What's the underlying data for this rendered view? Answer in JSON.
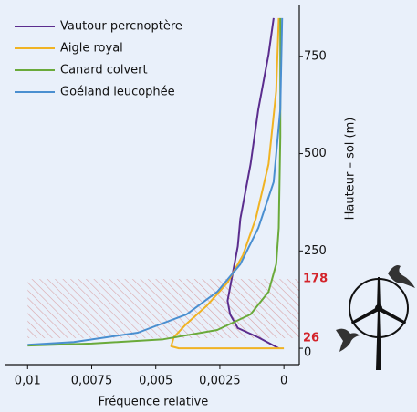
{
  "chart_data": {
    "type": "line",
    "x_label": "Fréquence relative",
    "y_label": "Hauteur – sol (m)",
    "xlim": [
      0.0109,
      -0.0006
    ],
    "ylim": [
      -42,
      883
    ],
    "xticks": [
      {
        "value": 0.01,
        "label": "0,01"
      },
      {
        "value": 0.0075,
        "label": "0,0075"
      },
      {
        "value": 0.005,
        "label": "0,005"
      },
      {
        "value": 0.0025,
        "label": "0,0025"
      },
      0
    ],
    "yticks": [
      0,
      250,
      500,
      750
    ],
    "highlight": [
      26,
      178
    ],
    "highlight_color": "#d3232a",
    "legend": "upper left",
    "series": [
      {
        "name": "Vautour percnoptère",
        "color": "#5b2d8e",
        "x": [
          0.0004,
          0.0006,
          0.001,
          0.0013,
          0.0017,
          0.0018,
          0.002,
          0.0022,
          0.0021,
          0.0018,
          0.001,
          0.0002
        ],
        "values": [
          848,
          755,
          614,
          473,
          333,
          262,
          192,
          122,
          87,
          52,
          28,
          0
        ]
      },
      {
        "name": "Aigle royal",
        "color": "#f0b323",
        "x": [
          0.0002,
          0.0003,
          0.0006,
          0.0011,
          0.0016,
          0.0022,
          0.003,
          0.0038,
          0.0043,
          0.0044,
          0.0041,
          0
        ],
        "values": [
          848,
          661,
          473,
          333,
          239,
          169,
          110,
          63,
          28,
          5,
          0,
          0
        ]
      },
      {
        "name": "Canard colvert",
        "color": "#6aaa3a",
        "x": [
          0.00014,
          0.00014,
          0.0002,
          0.0003,
          0.0006,
          0.0013,
          0.0026,
          0.0047,
          0.0075,
          0.01
        ],
        "values": [
          848,
          544,
          309,
          216,
          145,
          87,
          47,
          23,
          12,
          7
        ]
      },
      {
        "name": "Goéland leucophée",
        "color": "#4a8fd0",
        "x": [
          7e-05,
          0.00014,
          0.0004,
          0.001,
          0.0017,
          0.0026,
          0.0038,
          0.0057,
          0.0082,
          0.01
        ],
        "values": [
          848,
          614,
          427,
          309,
          216,
          145,
          87,
          40,
          16,
          9
        ]
      }
    ]
  }
}
